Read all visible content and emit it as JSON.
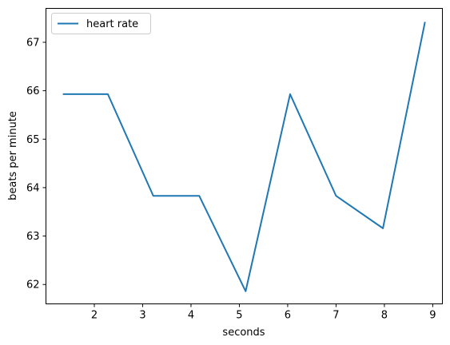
{
  "chart_data": {
    "type": "line",
    "xlabel": "seconds",
    "ylabel": "beats per minute",
    "xlim": [
      1.0,
      9.2
    ],
    "ylim": [
      61.6,
      67.7
    ],
    "xticks": [
      2,
      3,
      4,
      5,
      6,
      7,
      8,
      9
    ],
    "yticks": [
      62,
      63,
      64,
      65,
      66,
      67
    ],
    "grid": false,
    "legend_position": "top-left",
    "series": [
      {
        "name": "heart rate",
        "color": "#1f77b4",
        "x": [
          1.35,
          2.28,
          3.22,
          4.17,
          5.13,
          6.05,
          7.0,
          7.97,
          8.84
        ],
        "y": [
          65.93,
          65.93,
          63.83,
          63.83,
          61.86,
          65.93,
          63.83,
          63.16,
          67.42
        ]
      }
    ]
  }
}
